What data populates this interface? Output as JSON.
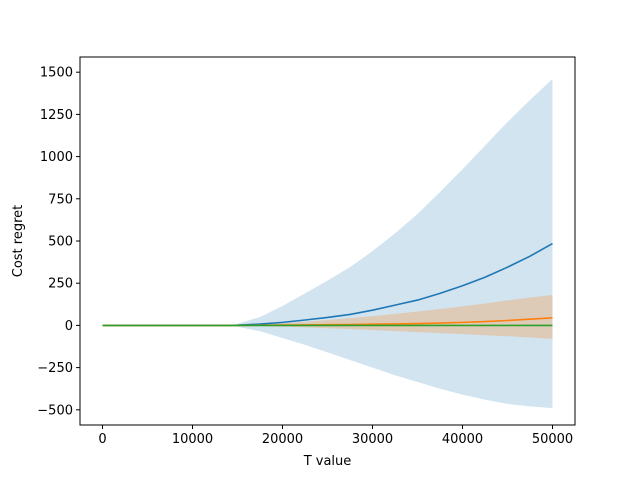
{
  "chart_data": {
    "type": "line",
    "title": "",
    "xlabel": "T value",
    "ylabel": "Cost regret",
    "xlim": [
      -2500,
      52500
    ],
    "ylim": [
      -590,
      1590
    ],
    "xticks": [
      0,
      10000,
      20000,
      30000,
      40000,
      50000
    ],
    "xtick_labels": [
      "0",
      "10000",
      "20000",
      "30000",
      "40000",
      "50000"
    ],
    "yticks": [
      -500,
      -250,
      0,
      250,
      500,
      750,
      1000,
      1250,
      1500
    ],
    "ytick_labels": [
      "−500",
      "−250",
      "0",
      "250",
      "500",
      "750",
      "1000",
      "1250",
      "1500"
    ],
    "grid": false,
    "legend": "none",
    "series": [
      {
        "color": "#1f77b4",
        "band_color": "#1f77b4",
        "band_opacity": 0.2,
        "x": [
          0,
          5000,
          10000,
          14000,
          15000,
          17500,
          20000,
          22500,
          25000,
          27500,
          30000,
          32500,
          35000,
          37500,
          40000,
          42500,
          45000,
          47500,
          50000
        ],
        "mean": [
          0,
          0,
          0,
          0,
          1,
          8,
          18,
          32,
          47,
          65,
          90,
          120,
          150,
          190,
          235,
          285,
          345,
          410,
          485
        ],
        "lower": [
          0,
          0,
          0,
          0,
          -8,
          -35,
          -75,
          -115,
          -160,
          -205,
          -250,
          -295,
          -335,
          -375,
          -410,
          -440,
          -465,
          -480,
          -490
        ],
        "upper": [
          0,
          0,
          0,
          0,
          10,
          50,
          115,
          190,
          265,
          345,
          440,
          545,
          660,
          790,
          925,
          1065,
          1205,
          1335,
          1460
        ]
      },
      {
        "color": "#ff7f0e",
        "band_color": "#ff7f0e",
        "band_opacity": 0.25,
        "x": [
          0,
          5000,
          10000,
          14000,
          15000,
          17500,
          20000,
          22500,
          25000,
          27500,
          30000,
          32500,
          35000,
          37500,
          40000,
          42500,
          45000,
          47500,
          50000
        ],
        "mean": [
          0,
          0,
          0,
          0,
          0,
          1,
          2,
          3,
          4,
          5,
          7,
          9,
          11,
          14,
          18,
          23,
          29,
          37,
          45
        ],
        "lower": [
          0,
          0,
          0,
          0,
          -1,
          -4,
          -8,
          -12,
          -17,
          -22,
          -28,
          -34,
          -40,
          -46,
          -52,
          -58,
          -64,
          -72,
          -80
        ],
        "upper": [
          0,
          0,
          0,
          0,
          1,
          6,
          14,
          22,
          32,
          43,
          55,
          68,
          82,
          97,
          113,
          130,
          148,
          165,
          180
        ]
      },
      {
        "color": "#2ca02c",
        "x": [
          0,
          50000
        ],
        "mean": [
          0,
          0
        ]
      }
    ]
  }
}
